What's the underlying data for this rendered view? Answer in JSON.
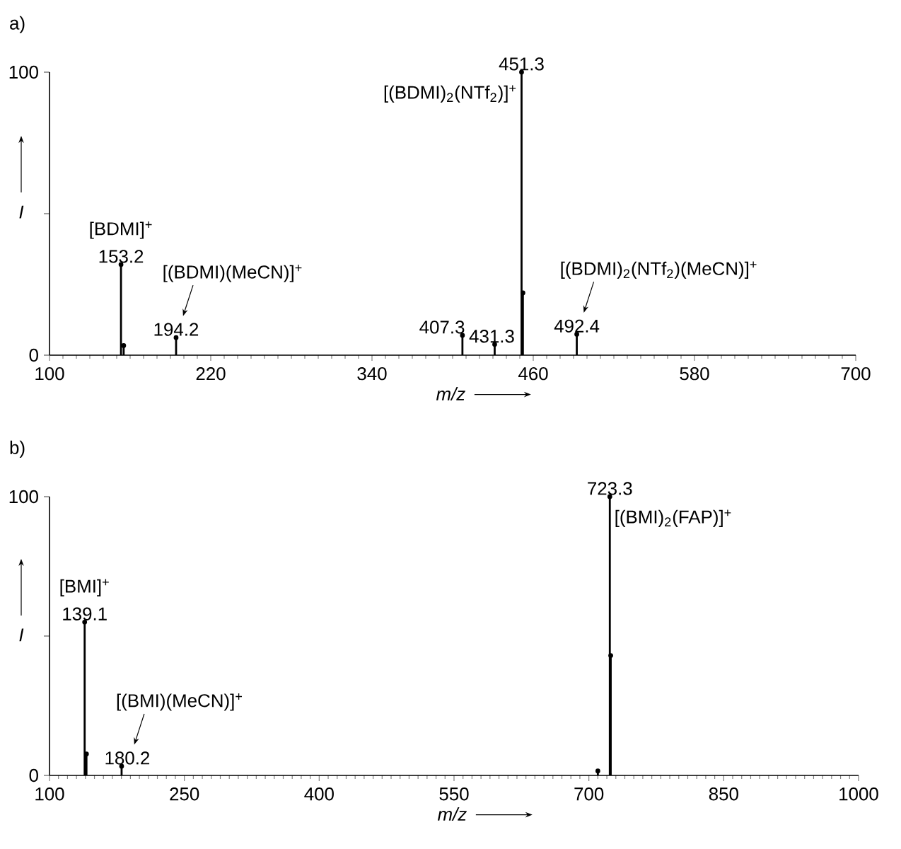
{
  "chart_data": [
    {
      "type": "lollipop",
      "marker": "circle",
      "title": "a)",
      "xlabel": "m/z",
      "ylabel": "I",
      "xlim": [
        100,
        700
      ],
      "xticks": [
        100,
        220,
        340,
        460,
        580,
        700
      ],
      "ylim": [
        0,
        100
      ],
      "yticks": [
        0,
        {
          "value": 50,
          "label": null
        },
        100
      ],
      "x": [
        153.2,
        155.2,
        194.2,
        407.3,
        431.3,
        451.3,
        452.3,
        492.4
      ],
      "series": [
        {
          "color": "#000000",
          "values": [
            32,
            3.4,
            6.2,
            7,
            3.8,
            100,
            22,
            7.4
          ]
        }
      ],
      "annotations": [
        {
          "text": "[BDMI]$^{+}$",
          "x": 153.2,
          "y": 32
        },
        {
          "text": "153.2",
          "x": 153.2,
          "y": 32
        },
        "[(BDMI)(MeCN)]$^{+}$",
        {
          "text": "194.2",
          "x": 194.2,
          "y": 6.2
        },
        {
          "text": "407.3",
          "x": 407.3,
          "y": 7
        },
        {
          "text": "431.3",
          "x": 431.3,
          "y": 3.8
        },
        {
          "text": "451.3",
          "x": 451.3,
          "y": 100
        },
        {
          "text": "[(BDMI)$_{2}$(NTf$_{2}$)]$^{+}$",
          "x": 451.3,
          "y": 100
        },
        "[(BDMI)$_{2}$(NTf$_{2}$)(MeCN)]$^{+}$",
        {
          "text": "492.4",
          "x": 492.4,
          "y": 7.4
        }
      ]
    },
    {
      "type": "lollipop",
      "marker": "circle",
      "title": "b)",
      "xlabel": "m/z",
      "ylabel": "I",
      "xlim": [
        100,
        1000
      ],
      "xticks": [
        100,
        250,
        400,
        550,
        700,
        850,
        1000
      ],
      "ylim": [
        0,
        100
      ],
      "yticks": [
        0,
        {
          "value": 50,
          "label": null
        },
        100
      ],
      "x": [
        139.1,
        141.1,
        180.2,
        710,
        723.3,
        724.3
      ],
      "series": [
        {
          "color": "#000000",
          "values": [
            55,
            7.7,
            3.3,
            1.6,
            100,
            43
          ]
        }
      ],
      "annotations": [
        {
          "text": "[BMI]$^{+}$",
          "x": 139.1,
          "y": 55
        },
        {
          "text": "139.1",
          "x": 139.1,
          "y": 55
        },
        "[(BMI)(MeCN)]$^{+}$",
        {
          "text": "180.2",
          "x": 180.2,
          "y": 3.3
        },
        {
          "text": "723.3",
          "x": 723.3,
          "y": 100
        },
        {
          "text": "[(BMI)$_{2}$(FAP)]$^{+}$",
          "x": 723.3,
          "y": 100
        }
      ]
    }
  ]
}
